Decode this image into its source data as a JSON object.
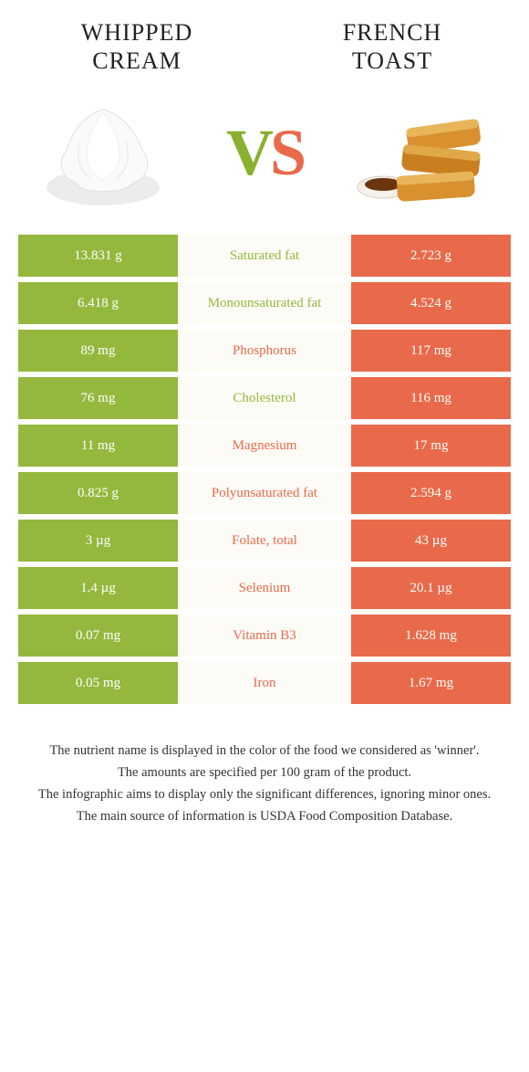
{
  "colors": {
    "left": "#94b83e",
    "right": "#e86a4a",
    "mid_bg": "#fdfbf6"
  },
  "header": {
    "left_title": "Whipped cream",
    "right_title": "French toast"
  },
  "vs": {
    "v": "V",
    "s": "S"
  },
  "rows": [
    {
      "left": "13.831 g",
      "label": "Saturated fat",
      "right": "2.723 g",
      "winner": "left"
    },
    {
      "left": "6.418 g",
      "label": "Monounsaturated fat",
      "right": "4.524 g",
      "winner": "left"
    },
    {
      "left": "89 mg",
      "label": "Phosphorus",
      "right": "117 mg",
      "winner": "right"
    },
    {
      "left": "76 mg",
      "label": "Cholesterol",
      "right": "116 mg",
      "winner": "left"
    },
    {
      "left": "11 mg",
      "label": "Magnesium",
      "right": "17 mg",
      "winner": "right"
    },
    {
      "left": "0.825 g",
      "label": "Polyunsaturated fat",
      "right": "2.594 g",
      "winner": "right"
    },
    {
      "left": "3 µg",
      "label": "Folate, total",
      "right": "43 µg",
      "winner": "right"
    },
    {
      "left": "1.4 µg",
      "label": "Selenium",
      "right": "20.1 µg",
      "winner": "right"
    },
    {
      "left": "0.07 mg",
      "label": "Vitamin B3",
      "right": "1.628 mg",
      "winner": "right"
    },
    {
      "left": "0.05 mg",
      "label": "Iron",
      "right": "1.67 mg",
      "winner": "right"
    }
  ],
  "footer": {
    "l1": "The nutrient name is displayed in the color of the food we considered as 'winner'.",
    "l2": "The amounts are specified per 100 gram of the product.",
    "l3": "The infographic aims to display only the significant differences, ignoring minor ones.",
    "l4": "The main source of information is USDA Food Composition Database."
  }
}
